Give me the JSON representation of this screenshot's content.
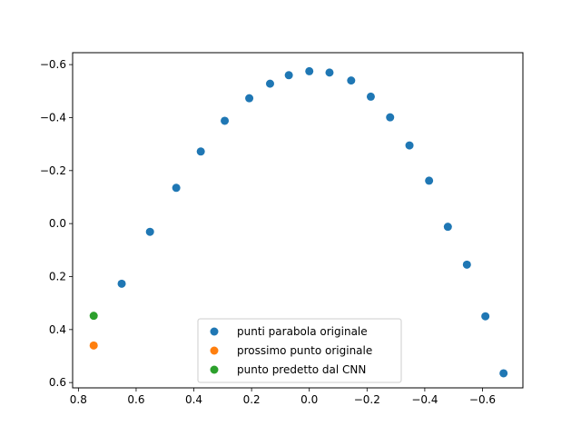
{
  "chart_data": {
    "type": "scatter",
    "title": "",
    "xlabel": "",
    "ylabel": "",
    "xlim": [
      0.82,
      -0.74
    ],
    "ylim": [
      0.62,
      -0.645
    ],
    "x_inverted": true,
    "y_inverted": true,
    "grid": false,
    "legend_position": "lower-center",
    "x_ticks": [
      {
        "value": 0.8,
        "label": "0.8"
      },
      {
        "value": 0.6,
        "label": "0.6"
      },
      {
        "value": 0.4,
        "label": "0.4"
      },
      {
        "value": 0.2,
        "label": "0.2"
      },
      {
        "value": 0.0,
        "label": "0.0"
      },
      {
        "value": -0.2,
        "label": "−0.2"
      },
      {
        "value": -0.4,
        "label": "−0.4"
      },
      {
        "value": -0.6,
        "label": "−0.6"
      }
    ],
    "y_ticks": [
      {
        "value": -0.6,
        "label": "−0.6"
      },
      {
        "value": -0.4,
        "label": "−0.4"
      },
      {
        "value": -0.2,
        "label": "−0.2"
      },
      {
        "value": 0.0,
        "label": "0.0"
      },
      {
        "value": 0.2,
        "label": "0.2"
      },
      {
        "value": 0.4,
        "label": "0.4"
      },
      {
        "value": 0.6,
        "label": "0.6"
      }
    ],
    "series": [
      {
        "name": "punti parabola originale",
        "color": "#1f77b4",
        "points": [
          {
            "x": 0.65,
            "y": 0.227
          },
          {
            "x": 0.552,
            "y": 0.031
          },
          {
            "x": 0.461,
            "y": -0.135
          },
          {
            "x": 0.376,
            "y": -0.272
          },
          {
            "x": 0.293,
            "y": -0.388
          },
          {
            "x": 0.208,
            "y": -0.473
          },
          {
            "x": 0.136,
            "y": -0.528
          },
          {
            "x": 0.071,
            "y": -0.56
          },
          {
            "x": 0.0,
            "y": -0.575
          },
          {
            "x": -0.07,
            "y": -0.57
          },
          {
            "x": -0.145,
            "y": -0.54
          },
          {
            "x": -0.213,
            "y": -0.479
          },
          {
            "x": -0.28,
            "y": -0.401
          },
          {
            "x": -0.347,
            "y": -0.295
          },
          {
            "x": -0.415,
            "y": -0.162
          },
          {
            "x": -0.48,
            "y": 0.012
          },
          {
            "x": -0.546,
            "y": 0.155
          },
          {
            "x": -0.61,
            "y": 0.35
          },
          {
            "x": -0.673,
            "y": 0.565
          }
        ]
      },
      {
        "name": "prossimo punto originale",
        "color": "#ff7f0e",
        "points": [
          {
            "x": 0.747,
            "y": 0.46
          }
        ]
      },
      {
        "name": "punto predetto dal CNN",
        "color": "#2ca02c",
        "points": [
          {
            "x": 0.747,
            "y": 0.348
          }
        ]
      }
    ]
  }
}
